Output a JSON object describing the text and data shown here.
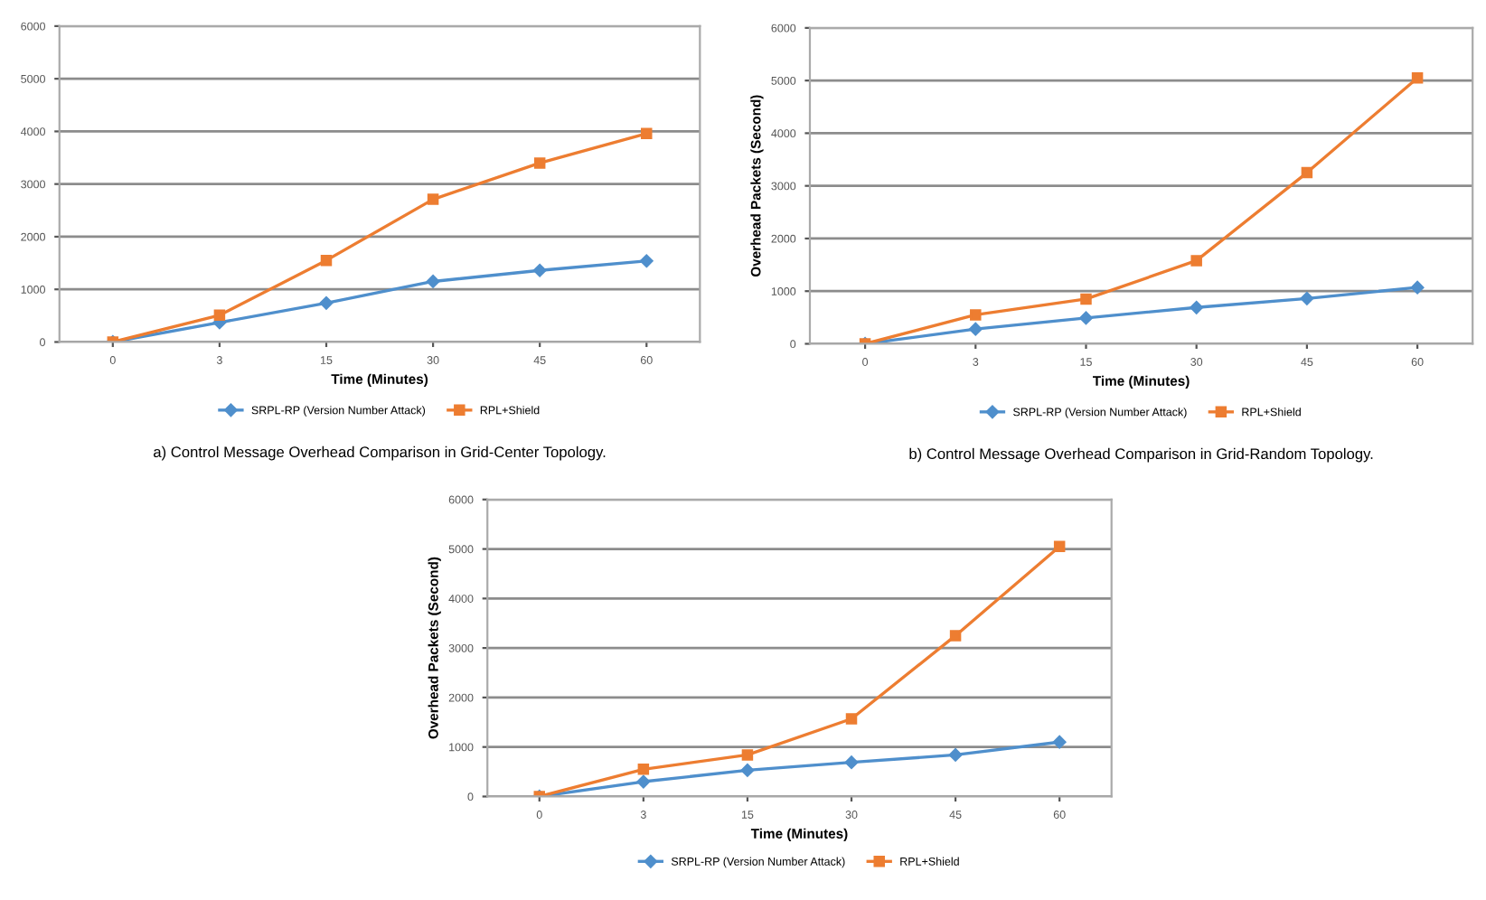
{
  "chart_data": [
    {
      "type": "line",
      "xlabel": "Time (Minutes)",
      "categories": [
        "0",
        "3",
        "15",
        "30",
        "45",
        "60"
      ],
      "ylim": [
        0,
        6000
      ],
      "yticks": [
        0,
        1000,
        2000,
        3000,
        4000,
        5000,
        6000
      ],
      "grid": "y",
      "legend": "bottom",
      "annotations": [
        "a) Control Message Overhead Comparison in Grid-Center Topology."
      ],
      "series": [
        {
          "name": "SRPL-RP (Version Number Attack)",
          "color": "#4f8fcc",
          "marker": "diamond",
          "values": [
            0,
            370,
            740,
            1150,
            1360,
            1540
          ]
        },
        {
          "name": "RPL+Shield",
          "color": "#ed7d31",
          "marker": "square",
          "values": [
            0,
            510,
            1550,
            2710,
            3400,
            3960
          ]
        }
      ]
    },
    {
      "type": "line",
      "xlabel": "Time (Minutes)",
      "ylabel": "Overhead Packets (Second)",
      "categories": [
        "0",
        "3",
        "15",
        "30",
        "45",
        "60"
      ],
      "ylim": [
        0,
        6000
      ],
      "yticks": [
        0,
        1000,
        2000,
        3000,
        4000,
        5000,
        6000
      ],
      "grid": "y",
      "legend": "bottom",
      "annotations": [
        "b) Control Message Overhead Comparison in Grid-Random Topology."
      ],
      "series": [
        {
          "name": "SRPL-RP (Version Number Attack)",
          "color": "#4f8fcc",
          "marker": "diamond",
          "values": [
            0,
            280,
            490,
            690,
            860,
            1070
          ]
        },
        {
          "name": "RPL+Shield",
          "color": "#ed7d31",
          "marker": "square",
          "values": [
            0,
            550,
            850,
            1580,
            3250,
            5050
          ]
        }
      ]
    },
    {
      "type": "line",
      "xlabel": "Time (Minutes)",
      "ylabel": "Overhead Packets (Second)",
      "categories": [
        "0",
        "3",
        "15",
        "30",
        "45",
        "60"
      ],
      "ylim": [
        0,
        6000
      ],
      "yticks": [
        0,
        1000,
        2000,
        3000,
        4000,
        5000,
        6000
      ],
      "grid": "y",
      "legend": "bottom",
      "series": [
        {
          "name": "SRPL-RP (Version Number Attack)",
          "color": "#4f8fcc",
          "marker": "diamond",
          "values": [
            0,
            300,
            530,
            690,
            840,
            1100
          ]
        },
        {
          "name": "RPL+Shield",
          "color": "#ed7d31",
          "marker": "square",
          "values": [
            0,
            550,
            840,
            1570,
            3250,
            5050
          ]
        }
      ]
    }
  ]
}
